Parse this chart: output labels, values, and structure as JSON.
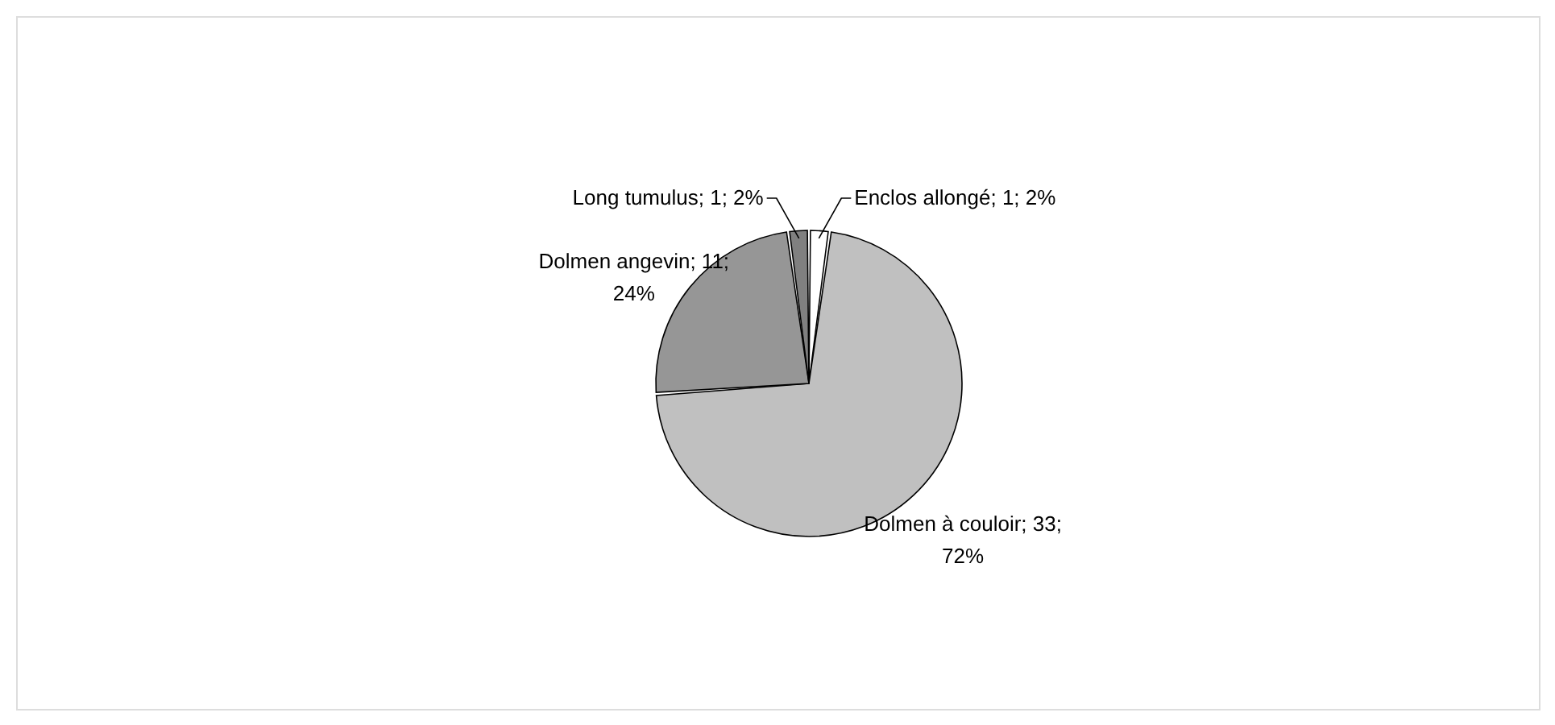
{
  "chart_data": {
    "type": "pie",
    "categories": [
      "Enclos allongé",
      "Dolmen à couloir",
      "Dolmen angevin",
      "Long tumulus"
    ],
    "values": [
      1,
      33,
      11,
      1
    ],
    "value_labels": [
      "1; 2%",
      "33; 72%",
      "11; 24%",
      "1; 2%"
    ],
    "colors": [
      "#ffffff",
      "#c0c0c0",
      "#969696",
      "#808080"
    ]
  }
}
